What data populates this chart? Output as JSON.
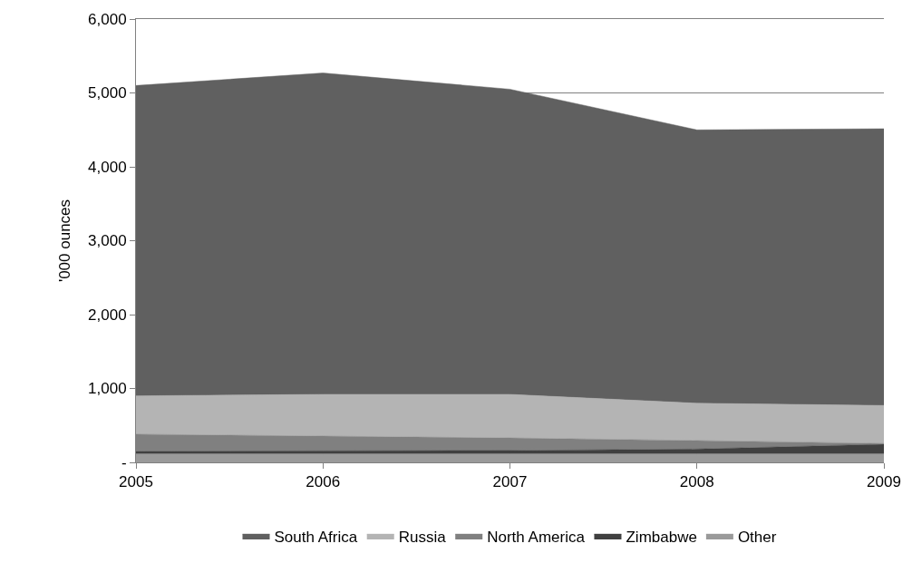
{
  "chart_data": {
    "type": "area",
    "stacked": true,
    "ylabel": "'000 ounces",
    "x": [
      2005,
      2006,
      2007,
      2008,
      2009
    ],
    "xlim": [
      2005,
      2009
    ],
    "xticks": [
      2005,
      2006,
      2007,
      2008,
      2009
    ],
    "ylim": [
      0,
      6000
    ],
    "yticks": [
      {
        "value": 0,
        "label": "-"
      },
      {
        "value": 1000,
        "label": "1,000"
      },
      {
        "value": 2000,
        "label": "2,000"
      },
      {
        "value": 3000,
        "label": "3,000"
      },
      {
        "value": 4000,
        "label": "4,000"
      },
      {
        "value": 5000,
        "label": "5,000"
      },
      {
        "value": 6000,
        "label": "6,000"
      }
    ],
    "grid": "y",
    "legend": "bottom",
    "series": [
      {
        "name": "Other",
        "color": "#9a9a9a",
        "values": [
          115,
          115,
          115,
          115,
          115
        ]
      },
      {
        "name": "Zimbabwe",
        "color": "#404040",
        "values": [
          35,
          40,
          45,
          65,
          130
        ]
      },
      {
        "name": "North America",
        "color": "#808080",
        "values": [
          230,
          200,
          170,
          115,
          10
        ]
      },
      {
        "name": "Russia",
        "color": "#b4b4b4",
        "values": [
          520,
          565,
          590,
          505,
          515
        ]
      },
      {
        "name": "South Africa",
        "color": "#606060",
        "values": [
          4200,
          4350,
          4130,
          3700,
          3745
        ]
      }
    ]
  }
}
